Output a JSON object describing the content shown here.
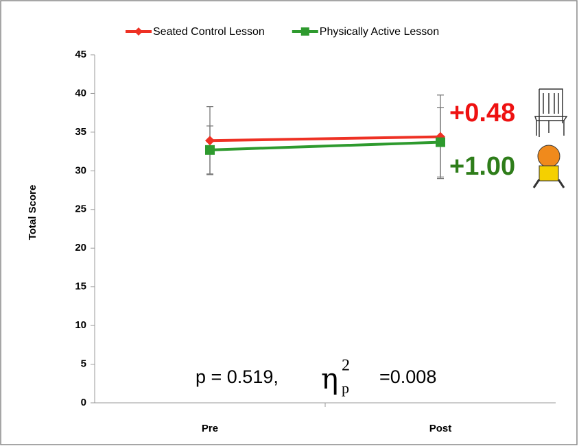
{
  "chart_data": {
    "type": "line",
    "y_label": "Total Score",
    "categories": [
      "Pre",
      "Post"
    ],
    "series": [
      {
        "name": "Seated Control Lesson",
        "color": "#ee3124",
        "marker": "diamond",
        "values": [
          33.9,
          34.4
        ],
        "errors": [
          4.4,
          5.4
        ]
      },
      {
        "name": "Physically Active Lesson",
        "color": "#2e9a2e",
        "marker": "square",
        "values": [
          32.7,
          33.7
        ],
        "errors": [
          3.1,
          4.5
        ]
      }
    ],
    "ylim": [
      0,
      45
    ],
    "yticks": [
      0,
      5,
      10,
      15,
      20,
      25,
      30,
      35,
      40,
      45
    ],
    "legend": "top",
    "annotations": {
      "seated_change": "+0.48",
      "active_change": "+1.00",
      "p_value": "p = 0.519,",
      "eta": "η",
      "eta_sup": "2",
      "eta_sub": "p",
      "eta_value": "=0.008"
    }
  }
}
